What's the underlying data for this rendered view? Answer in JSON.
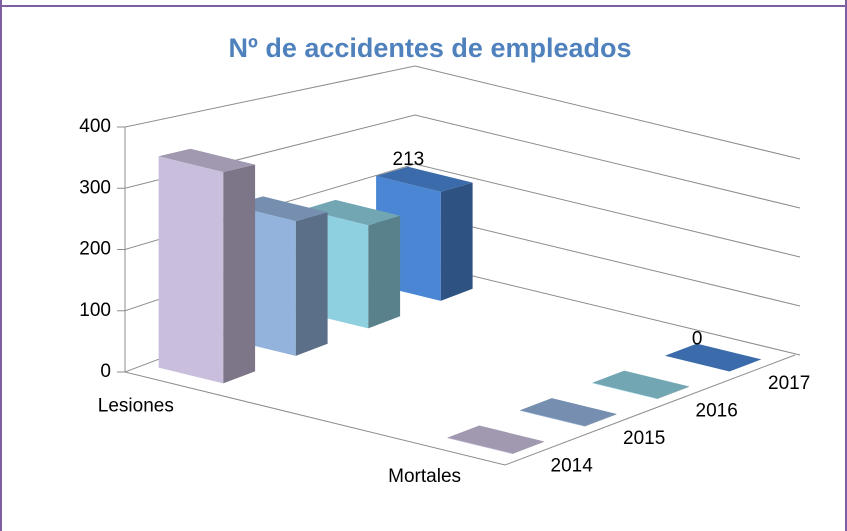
{
  "chart_data": {
    "type": "bar3d",
    "title": "Nº de accidentes de empleados",
    "categories": [
      "Lesiones",
      "Mortales"
    ],
    "series": [
      {
        "name": "2014",
        "color": "#c9bfdc",
        "values": [
          350,
          1
        ]
      },
      {
        "name": "2015",
        "color": "#93b3dc",
        "values": [
          235,
          1
        ]
      },
      {
        "name": "2016",
        "color": "#8fd0e0",
        "values": [
          190,
          1
        ]
      },
      {
        "name": "2017",
        "color": "#4a86d4",
        "values": [
          213,
          0
        ],
        "show_labels": true
      }
    ],
    "ylim": [
      0,
      400
    ],
    "yticks": [
      0,
      100,
      200,
      300,
      400
    ],
    "grid": true
  }
}
